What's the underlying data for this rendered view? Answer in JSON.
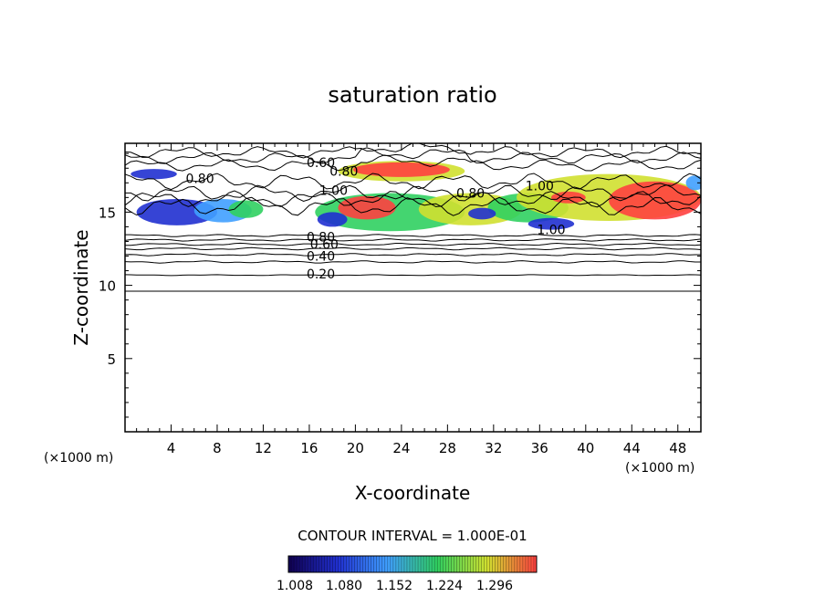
{
  "chart_data": {
    "type": "heatmap",
    "title": "saturation ratio",
    "xlabel": "X-coordinate",
    "ylabel": "Z-coordinate",
    "x_unit": "(×1000 m)",
    "z_unit": "(×1000 m)",
    "xlim": [
      0,
      50
    ],
    "ylim": [
      0,
      19.7
    ],
    "x_ticks": [
      4,
      8,
      12,
      16,
      20,
      24,
      28,
      32,
      36,
      40,
      44,
      48
    ],
    "y_ticks": [
      5,
      10,
      15
    ],
    "contour_interval_text": "CONTOUR INTERVAL = 1.000E-01",
    "colorbar": {
      "ticks": [
        "1.008",
        "1.080",
        "1.152",
        "1.224",
        "1.296"
      ],
      "colors": [
        "#100050",
        "#2030d0",
        "#40a0ff",
        "#30d060",
        "#d0e030",
        "#ff4040"
      ]
    },
    "contour_labels": [
      {
        "text": "0.60",
        "x": 17,
        "y": 18.4
      },
      {
        "text": "0.80",
        "x": 19,
        "y": 17.8
      },
      {
        "text": "0.80",
        "x": 6.5,
        "y": 17.3
      },
      {
        "text": "1.00",
        "x": 18.1,
        "y": 16.5
      },
      {
        "text": "0.80",
        "x": 30,
        "y": 16.3
      },
      {
        "text": "1.00",
        "x": 36,
        "y": 16.8
      },
      {
        "text": "1.00",
        "x": 37,
        "y": 13.8
      },
      {
        "text": "0.80",
        "x": 17,
        "y": 13.3
      },
      {
        "text": "0.60",
        "x": 17.3,
        "y": 12.8
      },
      {
        "text": "0.40",
        "x": 17,
        "y": 12.0
      },
      {
        "text": "0.20",
        "x": 17,
        "y": 10.8
      }
    ]
  }
}
